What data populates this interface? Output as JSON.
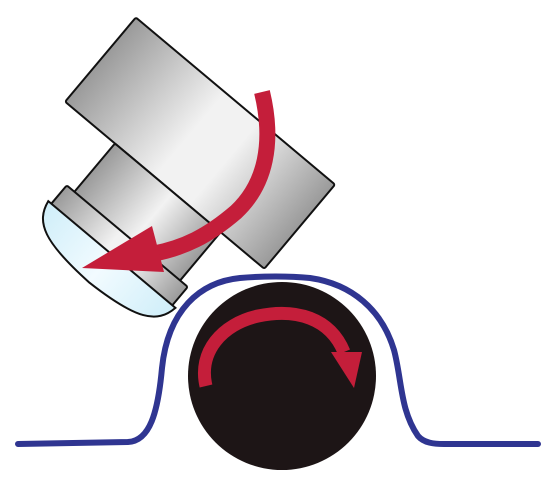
{
  "colors": {
    "background": "#ffffff",
    "tool_body": "#9a9a9a",
    "tool_highlight": "#f2f2f2",
    "tool_outline": "#111111",
    "lens": "#cfeef9",
    "lens_highlight": "#f2fbff",
    "roller": "#1d1516",
    "arrow": "#c41e3a",
    "curve": "#2f3591"
  },
  "icons": [
    "polishing-tool",
    "lens-pad",
    "counter-clockwise-arrow",
    "roller",
    "clockwise-arrow",
    "material-profile-curve"
  ]
}
